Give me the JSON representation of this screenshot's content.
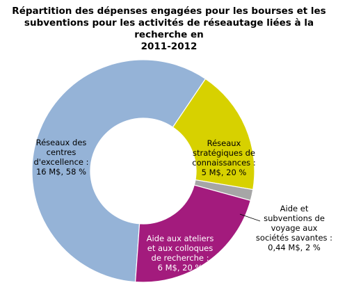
{
  "chart_data": {
    "type": "pie",
    "title": "Répartition des dépenses engagées pour les bourses et les subventions pour les activités de réseautage liées à la recherche en 2011-2012",
    "title_lines": [
      "Répartition des dépenses engagées pour les bourses et les",
      "subventions pour les activités de réseautage liées à la recherche en",
      "2011-2012"
    ],
    "unit": "M$",
    "slices": [
      {
        "value": 16,
        "percent": 58,
        "color": "#95b3d7",
        "label_color": "#000000",
        "label_lines": [
          "Réseaux des",
          "centres",
          "d'excellence :",
          "16 M$, 58 %"
        ]
      },
      {
        "value": 5,
        "percent": 20,
        "color": "#d7d100",
        "label_color": "#000000",
        "label_lines": [
          "Réseaux",
          "stratégiques de",
          "connaissances :",
          "5 M$, 20 %"
        ]
      },
      {
        "value": 0.44,
        "percent": 2,
        "color": "#a6a6a6",
        "label_color": "#000000",
        "label_lines": [
          "Aide et",
          "subventions de",
          "voyage aux",
          "sociétés savantes :",
          "0,44 M$, 2 %"
        ]
      },
      {
        "value": 6,
        "percent": 20,
        "color": "#a31b7d",
        "label_color": "#ffffff",
        "label_lines": [
          "Aide aux ateliers",
          "et aux colloques",
          "de recherche :",
          "6 M$, 20 %"
        ]
      }
    ]
  }
}
